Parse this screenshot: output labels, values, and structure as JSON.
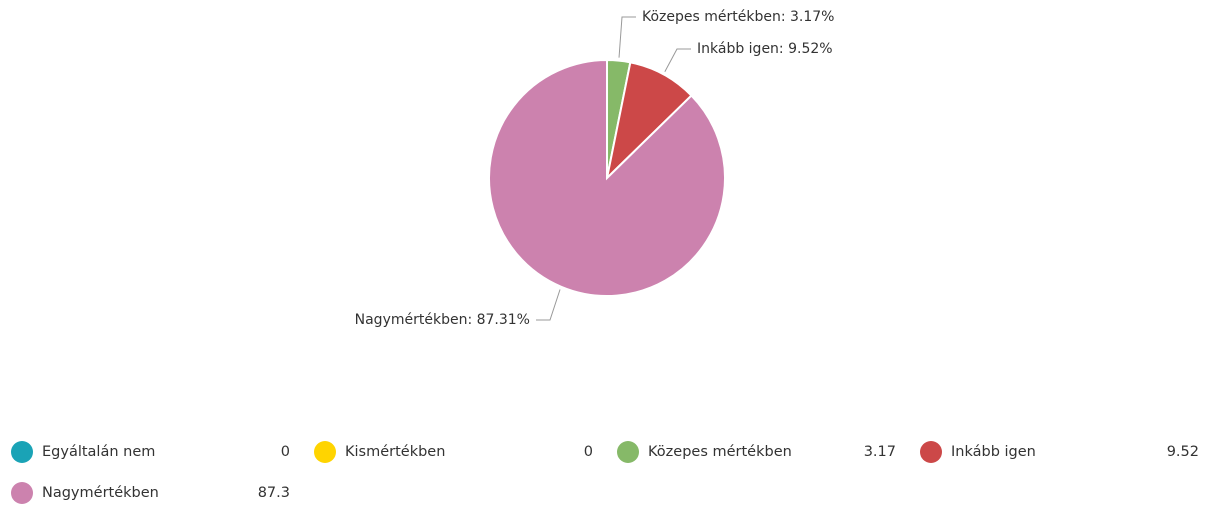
{
  "chart_data": {
    "type": "pie",
    "categories": [
      "Egyáltalán nem",
      "Kismértékben",
      "Közepes mértékben",
      "Inkább igen",
      "Nagymértékben"
    ],
    "values": [
      0,
      0,
      3.17,
      9.52,
      87.31
    ],
    "value_labels": [
      null,
      null,
      "Közepes mértékben: 3.17%",
      "Inkább igen: 9.52%",
      "Nagymértékben: 87.31%"
    ],
    "legend_labels": [
      "0",
      "0",
      "3.17",
      "9.52",
      "87.3"
    ],
    "colors": [
      "#1aa3b6",
      "#ffd400",
      "#86b968",
      "#cc4848",
      "#cc82ae"
    ]
  }
}
